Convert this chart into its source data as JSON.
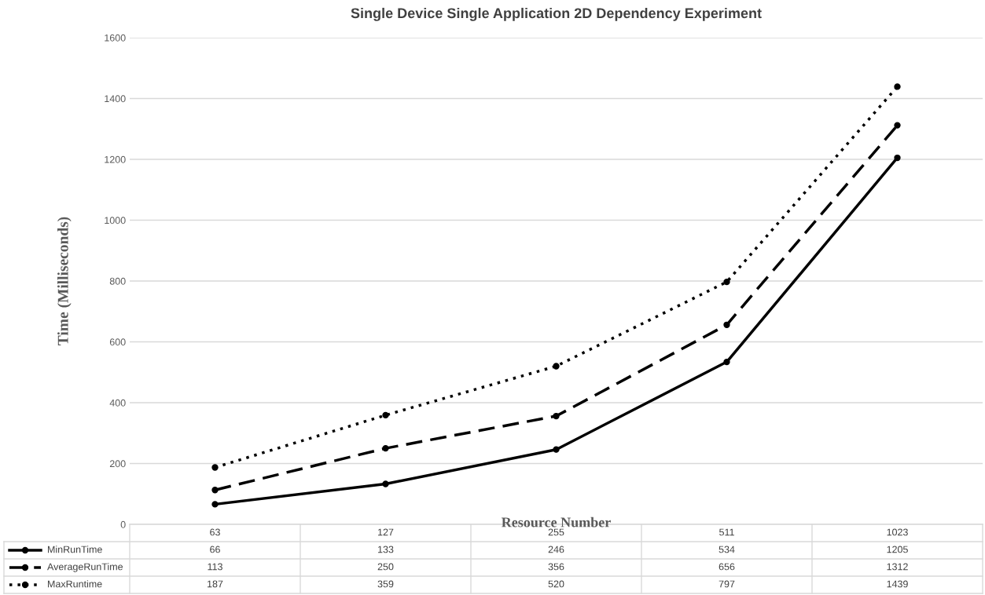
{
  "chart_data": {
    "type": "line",
    "title": "Single Device Single Application 2D Dependency Experiment",
    "xlabel": "Resource Number",
    "ylabel": "Time (Milliseconds)",
    "categories": [
      "63",
      "127",
      "255",
      "511",
      "1023"
    ],
    "series": [
      {
        "name": "MinRunTime",
        "color": "#000000",
        "line_style": "solid",
        "values": [
          66,
          133,
          246,
          534,
          1205
        ]
      },
      {
        "name": "AverageRunTime",
        "color": "#000000",
        "line_style": "dashed",
        "values": [
          113,
          250,
          356,
          656,
          1312
        ]
      },
      {
        "name": "MaxRuntime",
        "color": "#000000",
        "line_style": "dotted",
        "values": [
          187,
          359,
          520,
          797,
          1439
        ]
      }
    ],
    "ylim": [
      0,
      1600
    ],
    "yticks": [
      0,
      200,
      400,
      600,
      800,
      1000,
      1200,
      1400,
      1600
    ],
    "grid": "y",
    "marker": "circle",
    "legend": "bottom",
    "data_labels": true
  }
}
